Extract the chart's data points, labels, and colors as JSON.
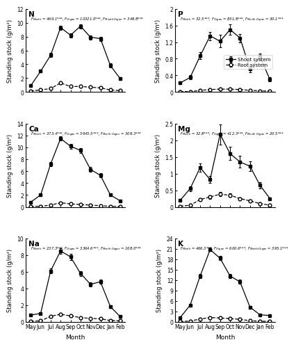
{
  "months": [
    "May",
    "Jun",
    "Jul",
    "Aug",
    "Sep",
    "Oct",
    "Nov",
    "Dec",
    "Jan",
    "Feb"
  ],
  "panels": [
    {
      "label": "N",
      "fstats": "$F_{Month}$ = 469.1***, $F_{Organ}$ = 10321.0***, $F_{Month · Organ}$ = 348.8***",
      "ylim": [
        0,
        12
      ],
      "yticks": [
        0,
        2,
        4,
        6,
        8,
        10,
        12
      ],
      "shoot": [
        0.9,
        3.0,
        5.3,
        9.3,
        8.2,
        9.5,
        7.9,
        7.7,
        3.8,
        1.9
      ],
      "shoot_err": [
        0.1,
        0.2,
        0.3,
        0.3,
        0.3,
        0.3,
        0.3,
        0.3,
        0.3,
        0.2
      ],
      "root": [
        0.15,
        0.3,
        0.5,
        1.3,
        0.8,
        0.8,
        0.7,
        0.6,
        0.3,
        0.2
      ],
      "root_err": [
        0.03,
        0.05,
        0.1,
        0.15,
        0.1,
        0.1,
        0.1,
        0.1,
        0.05,
        0.05
      ],
      "row": 0,
      "col": 0
    },
    {
      "label": "P",
      "fstats": "$F_{Month}$ = 32.5***, $F_{Organ}$ = 831.8***, $F_{Month · Organ}$ = 30.1***",
      "ylim": [
        0,
        2.0
      ],
      "yticks": [
        0.0,
        0.4,
        0.8,
        1.2,
        1.6,
        2.0
      ],
      "shoot": [
        0.22,
        0.35,
        0.87,
        1.35,
        1.22,
        1.5,
        1.3,
        0.55,
        0.85,
        0.3
      ],
      "shoot_err": [
        0.03,
        0.05,
        0.08,
        0.1,
        0.15,
        0.12,
        0.1,
        0.08,
        0.08,
        0.05
      ],
      "root": [
        0.01,
        0.01,
        0.04,
        0.06,
        0.07,
        0.07,
        0.06,
        0.04,
        0.03,
        0.02
      ],
      "root_err": [
        0.005,
        0.005,
        0.01,
        0.01,
        0.01,
        0.01,
        0.01,
        0.01,
        0.01,
        0.005
      ],
      "row": 0,
      "col": 1,
      "legend": true
    },
    {
      "label": "Ca",
      "fstats": "$F_{Month}$ = 373.4***, $F_{Organ}$ = 5945.5***, $F_{Month · Organ}$ = 308.3***",
      "ylim": [
        0,
        14
      ],
      "yticks": [
        0,
        2,
        4,
        6,
        8,
        10,
        12,
        14
      ],
      "shoot": [
        0.8,
        2.0,
        7.2,
        11.5,
        10.2,
        9.5,
        6.3,
        5.3,
        2.0,
        1.0
      ],
      "shoot_err": [
        0.1,
        0.2,
        0.4,
        0.35,
        0.4,
        0.4,
        0.4,
        0.35,
        0.2,
        0.1
      ],
      "root": [
        0.1,
        0.1,
        0.3,
        0.7,
        0.5,
        0.4,
        0.3,
        0.2,
        0.1,
        0.05
      ],
      "root_err": [
        0.02,
        0.02,
        0.05,
        0.08,
        0.07,
        0.06,
        0.05,
        0.04,
        0.02,
        0.01
      ],
      "row": 1,
      "col": 0
    },
    {
      "label": "Mg",
      "fstats": "$F_{Month}$ = 32.8***, $F_{Organ}$ = 412.3***, $F_{Month · Organ}$ = 20.5***",
      "ylim": [
        0,
        2.5
      ],
      "yticks": [
        0.0,
        0.5,
        1.0,
        1.5,
        2.0,
        2.5
      ],
      "shoot": [
        0.2,
        0.55,
        1.18,
        0.82,
        2.18,
        1.6,
        1.35,
        1.22,
        0.65,
        0.25
      ],
      "shoot_err": [
        0.03,
        0.07,
        0.12,
        0.1,
        0.3,
        0.2,
        0.18,
        0.15,
        0.1,
        0.04
      ],
      "root": [
        0.02,
        0.05,
        0.22,
        0.3,
        0.38,
        0.35,
        0.25,
        0.18,
        0.1,
        0.05
      ],
      "root_err": [
        0.005,
        0.01,
        0.03,
        0.05,
        0.06,
        0.05,
        0.04,
        0.03,
        0.02,
        0.01
      ],
      "row": 1,
      "col": 1
    },
    {
      "label": "Na",
      "fstats": "$F_{Month}$ = 237.3***, $F_{Organ}$ = 3364.6***, $F_{Month · Organ}$ = 168.0***",
      "ylim": [
        0,
        10
      ],
      "yticks": [
        0,
        2,
        4,
        6,
        8,
        10
      ],
      "shoot": [
        0.8,
        1.0,
        6.1,
        8.5,
        7.8,
        5.8,
        4.5,
        4.8,
        1.8,
        0.6
      ],
      "shoot_err": [
        0.05,
        0.1,
        0.3,
        0.3,
        0.35,
        0.3,
        0.25,
        0.25,
        0.15,
        0.08
      ],
      "root": [
        0.05,
        0.1,
        0.65,
        0.9,
        0.7,
        0.5,
        0.4,
        0.35,
        0.15,
        0.1
      ],
      "root_err": [
        0.01,
        0.02,
        0.08,
        0.1,
        0.08,
        0.07,
        0.06,
        0.05,
        0.03,
        0.02
      ],
      "row": 2,
      "col": 0
    },
    {
      "label": "K",
      "fstats": "$F_{Month}$ = 466.3***, $F_{Organ}$ = 600.6***, $F_{Month · Organ}$ = 395.1***",
      "ylim": [
        0,
        24
      ],
      "yticks": [
        0,
        3,
        6,
        9,
        12,
        15,
        18,
        21,
        24
      ],
      "shoot": [
        1.2,
        4.8,
        13.2,
        20.8,
        18.3,
        13.2,
        11.5,
        4.2,
        2.0,
        1.8
      ],
      "shoot_err": [
        0.15,
        0.4,
        0.6,
        0.5,
        0.6,
        0.6,
        0.6,
        0.4,
        0.2,
        0.2
      ],
      "root": [
        0.05,
        0.2,
        0.8,
        1.2,
        1.1,
        0.9,
        0.7,
        0.3,
        0.15,
        0.1
      ],
      "root_err": [
        0.01,
        0.03,
        0.1,
        0.15,
        0.12,
        0.1,
        0.08,
        0.05,
        0.03,
        0.02
      ],
      "row": 2,
      "col": 1
    }
  ]
}
